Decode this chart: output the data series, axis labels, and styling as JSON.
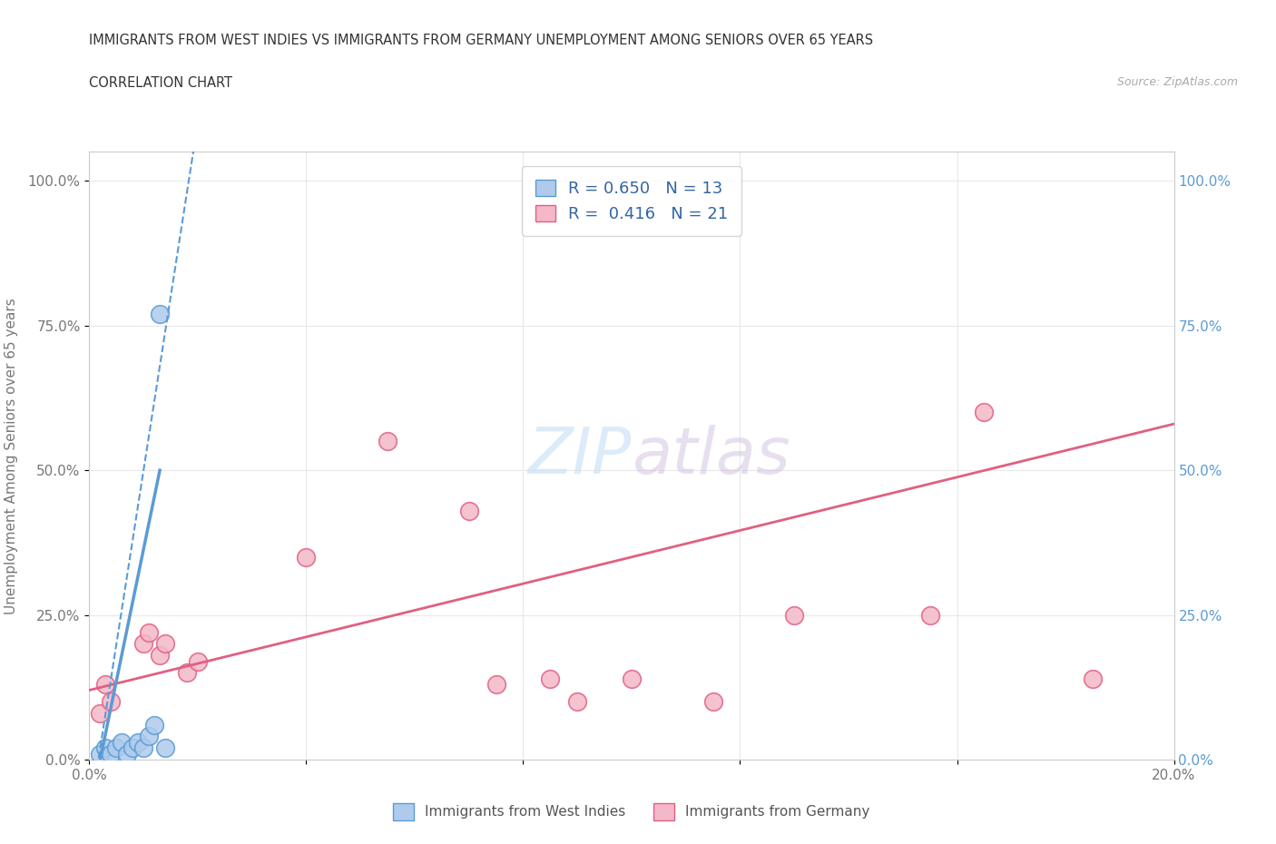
{
  "title_line1": "IMMIGRANTS FROM WEST INDIES VS IMMIGRANTS FROM GERMANY UNEMPLOYMENT AMONG SENIORS OVER 65 YEARS",
  "title_line2": "CORRELATION CHART",
  "source": "Source: ZipAtlas.com",
  "ylabel": "Unemployment Among Seniors over 65 years",
  "xlim": [
    0.0,
    0.2
  ],
  "ylim": [
    0.0,
    1.05
  ],
  "x_ticks": [
    0.0,
    0.04,
    0.08,
    0.12,
    0.16,
    0.2
  ],
  "x_tick_labels": [
    "0.0%",
    "",
    "",
    "",
    "",
    "20.0%"
  ],
  "y_ticks": [
    0.0,
    0.25,
    0.5,
    0.75,
    1.0
  ],
  "y_tick_labels": [
    "0.0%",
    "25.0%",
    "50.0%",
    "75.0%",
    "100.0%"
  ],
  "west_indies_color": "#aecbec",
  "west_indies_edge": "#5b9bd5",
  "germany_color": "#f4b8c8",
  "germany_edge": "#e06080",
  "west_indies_R": 0.65,
  "west_indies_N": 13,
  "germany_R": 0.416,
  "germany_N": 21,
  "legend_color": "#3465a4",
  "west_indies_x": [
    0.002,
    0.003,
    0.004,
    0.005,
    0.006,
    0.007,
    0.008,
    0.009,
    0.01,
    0.011,
    0.012,
    0.013,
    0.014
  ],
  "west_indies_y": [
    0.01,
    0.02,
    0.01,
    0.02,
    0.03,
    0.01,
    0.02,
    0.03,
    0.02,
    0.04,
    0.06,
    0.77,
    0.02
  ],
  "germany_x": [
    0.002,
    0.003,
    0.004,
    0.01,
    0.011,
    0.013,
    0.014,
    0.018,
    0.02,
    0.04,
    0.055,
    0.07,
    0.075,
    0.085,
    0.09,
    0.1,
    0.115,
    0.13,
    0.155,
    0.165,
    0.185
  ],
  "germany_y": [
    0.08,
    0.13,
    0.1,
    0.2,
    0.22,
    0.18,
    0.2,
    0.15,
    0.17,
    0.35,
    0.55,
    0.43,
    0.13,
    0.14,
    0.1,
    0.14,
    0.1,
    0.25,
    0.25,
    0.6,
    0.14
  ],
  "bg_color": "#ffffff",
  "grid_color": "#e8e8e8"
}
